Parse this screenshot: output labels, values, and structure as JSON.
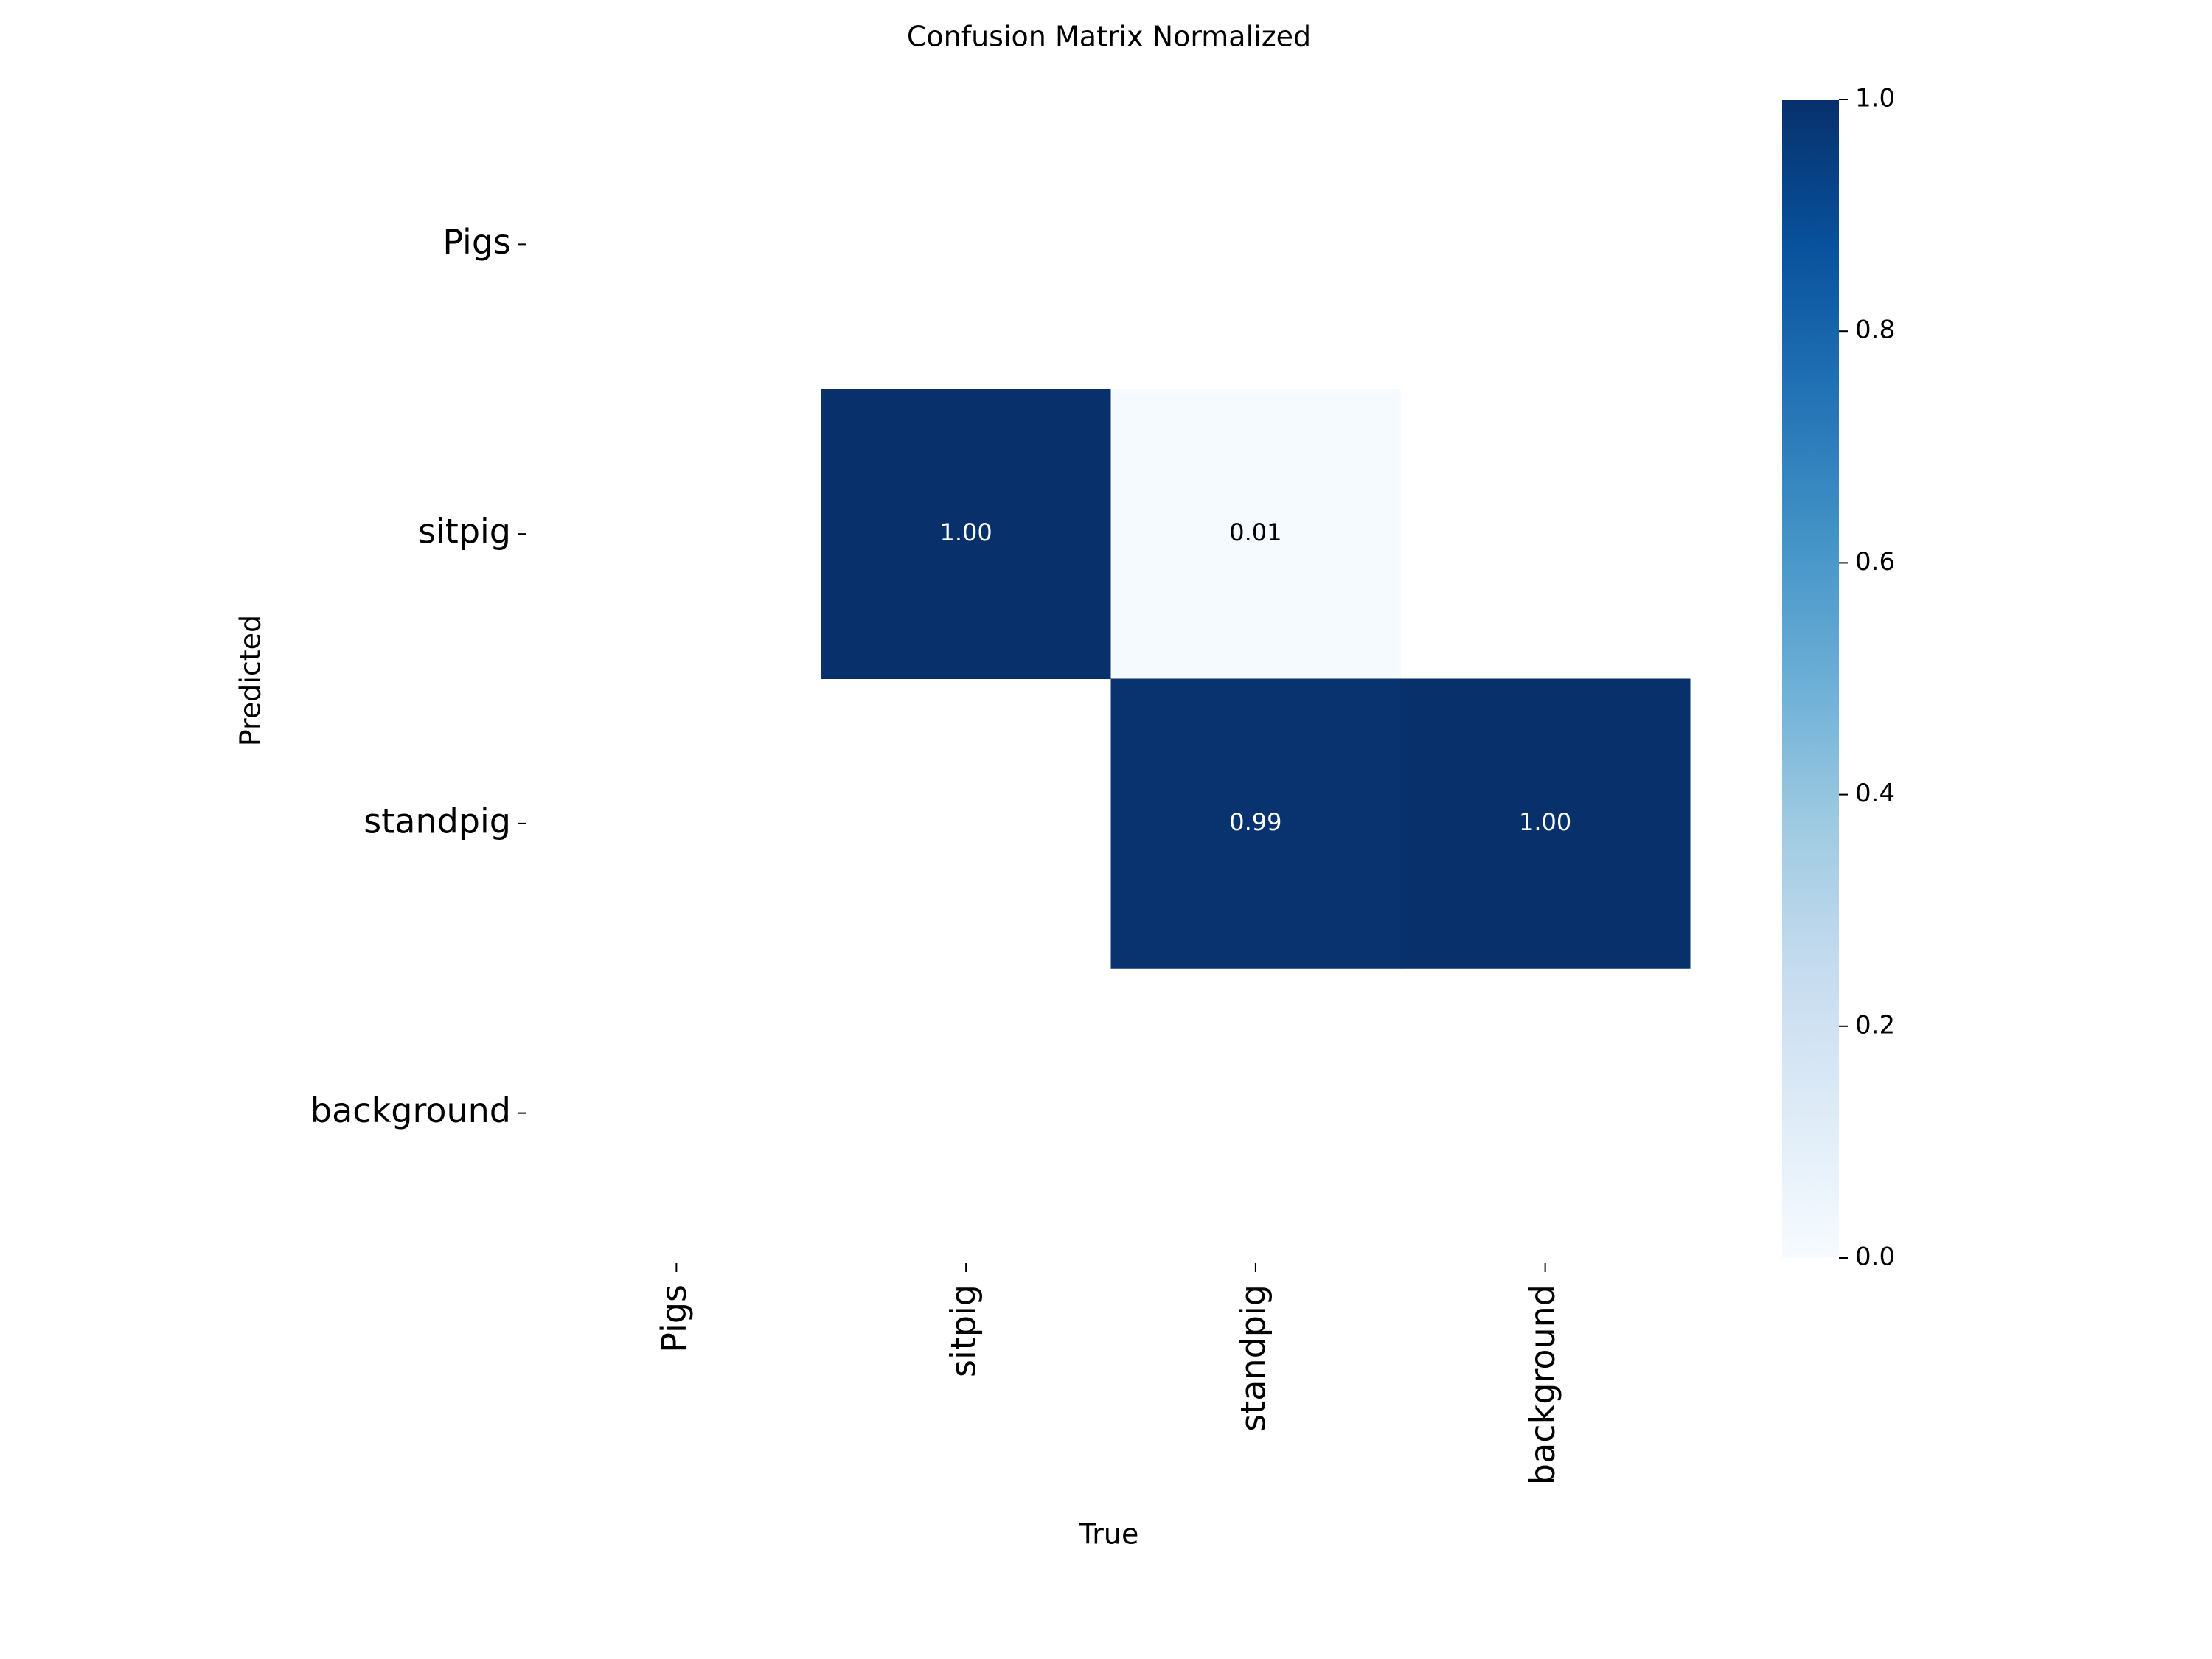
{
  "chart_data": {
    "type": "heatmap",
    "title": "Confusion Matrix Normalized",
    "x_label": "True",
    "y_label": "Predicted",
    "x_categories": [
      "Pigs",
      "sitpig",
      "standpig",
      "background"
    ],
    "y_categories": [
      "Pigs",
      "sitpig",
      "standpig",
      "background"
    ],
    "values": [
      [
        null,
        null,
        null,
        null
      ],
      [
        null,
        1,
        0.01,
        null
      ],
      [
        null,
        null,
        0.99,
        1
      ],
      [
        null,
        null,
        null,
        null
      ]
    ],
    "value_labels": [
      [
        null,
        null,
        null,
        null
      ],
      [
        null,
        "1.00",
        null,
        null
      ],
      [
        null,
        null,
        null,
        "1.00"
      ],
      [
        null,
        null,
        null,
        null
      ]
    ],
    "colormap": "Blues",
    "clim": [
      0,
      1
    ],
    "cticks": [
      {
        "value": 0,
        "label": "0.0"
      },
      0.2,
      0.4,
      0.6,
      0.8,
      {
        "value": 1,
        "label": "1.0"
      }
    ]
  }
}
